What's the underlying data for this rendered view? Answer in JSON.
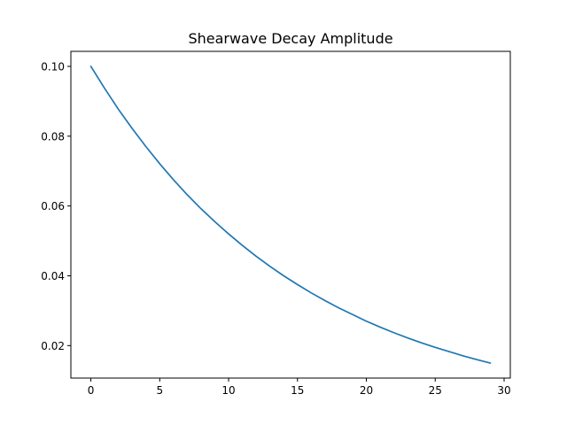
{
  "chart_data": {
    "type": "line",
    "title": "Shearwave Decay Amplitude",
    "xlabel": "",
    "ylabel": "",
    "xlim": [
      -1.45,
      30.45
    ],
    "ylim": [
      0.0107,
      0.1043
    ],
    "xticks": [
      0,
      5,
      10,
      15,
      20,
      25,
      30
    ],
    "xtick_labels": [
      "0",
      "5",
      "10",
      "15",
      "20",
      "25",
      "30"
    ],
    "yticks": [
      0.02,
      0.04,
      0.06,
      0.08,
      0.1
    ],
    "ytick_labels": [
      "0.02",
      "0.04",
      "0.06",
      "0.08",
      "0.10"
    ],
    "grid": false,
    "series": [
      {
        "color": "#1f77b4",
        "x": [
          0,
          1,
          2,
          3,
          4,
          5,
          6,
          7,
          8,
          9,
          10,
          11,
          12,
          13,
          14,
          15,
          16,
          17,
          18,
          19,
          20,
          21,
          22,
          23,
          24,
          25,
          26,
          27,
          28,
          29
        ],
        "y": [
          0.1,
          0.0937,
          0.0877,
          0.0822,
          0.077,
          0.0721,
          0.0675,
          0.0632,
          0.0592,
          0.0555,
          0.052,
          0.0487,
          0.0456,
          0.0427,
          0.04,
          0.0375,
          0.0351,
          0.0329,
          0.0308,
          0.0289,
          0.027,
          0.0253,
          0.0237,
          0.0222,
          0.0208,
          0.0195,
          0.0183,
          0.0171,
          0.016,
          0.015
        ]
      }
    ]
  }
}
